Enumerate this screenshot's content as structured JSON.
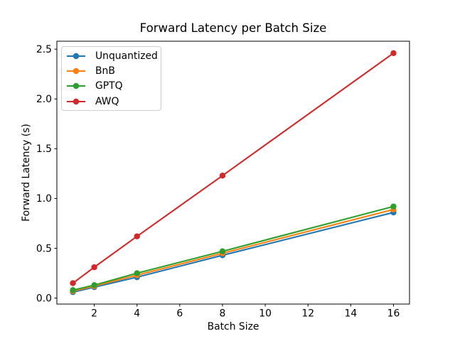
{
  "chart_data": {
    "type": "line",
    "title": "Forward Latency per Batch Size",
    "xlabel": "Batch Size",
    "ylabel": "Forward Latency (s)",
    "x": [
      1,
      2,
      4,
      8,
      16
    ],
    "series": [
      {
        "name": "Unquantized",
        "color": "#1f77b4",
        "values": [
          0.06,
          0.11,
          0.21,
          0.43,
          0.86
        ]
      },
      {
        "name": "BnB",
        "color": "#ff7f0e",
        "values": [
          0.07,
          0.12,
          0.23,
          0.45,
          0.89
        ]
      },
      {
        "name": "GPTQ",
        "color": "#2ca02c",
        "values": [
          0.08,
          0.13,
          0.25,
          0.47,
          0.92
        ]
      },
      {
        "name": "AWQ",
        "color": "#d62728",
        "values": [
          0.15,
          0.31,
          0.62,
          1.23,
          2.46
        ]
      }
    ],
    "xlim": [
      0.25,
      16.75
    ],
    "ylim": [
      -0.06,
      2.58
    ],
    "xtick_values": [
      2,
      4,
      6,
      8,
      10,
      12,
      14,
      16
    ],
    "xtick_labels": [
      "2",
      "4",
      "6",
      "8",
      "10",
      "12",
      "14",
      "16"
    ],
    "ytick_values": [
      0.0,
      0.5,
      1.0,
      1.5,
      2.0,
      2.5
    ],
    "ytick_labels": [
      "0.0",
      "0.5",
      "1.0",
      "1.5",
      "2.0",
      "2.5"
    ],
    "grid": false,
    "marker": "circle",
    "legend": {
      "position": "upper-left"
    },
    "axis_color": "#000000",
    "background_color": "#ffffff"
  }
}
